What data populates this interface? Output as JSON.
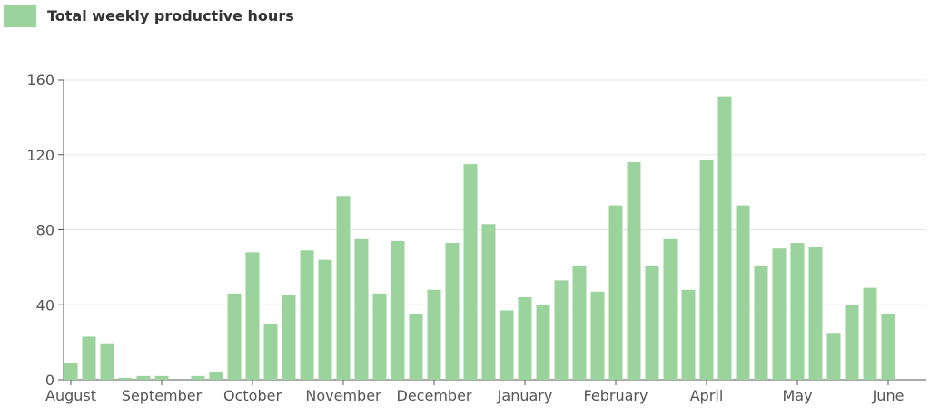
{
  "chart_data": {
    "type": "bar",
    "series": [
      {
        "name": "Total weekly productive hours",
        "color": "#9ad39b",
        "values": [
          9,
          23,
          19,
          1,
          2,
          2,
          0,
          2,
          4,
          46,
          68,
          30,
          45,
          69,
          64,
          98,
          75,
          46,
          74,
          35,
          48,
          73,
          115,
          83,
          37,
          44,
          40,
          53,
          61,
          47,
          93,
          116,
          61,
          75,
          48,
          117,
          151,
          93,
          61,
          70,
          73,
          71,
          25,
          40,
          49,
          35
        ]
      }
    ],
    "categories": [
      "August",
      null,
      null,
      null,
      null,
      "September",
      null,
      null,
      null,
      null,
      "October",
      null,
      null,
      null,
      null,
      "November",
      null,
      null,
      null,
      null,
      "December",
      null,
      null,
      null,
      null,
      "January",
      null,
      null,
      null,
      null,
      "February",
      null,
      null,
      null,
      null,
      "April",
      null,
      null,
      null,
      null,
      "May",
      null,
      null,
      null,
      null,
      "June"
    ],
    "ylim": [
      0,
      160
    ],
    "yticks": [
      0,
      40,
      80,
      120,
      160
    ],
    "grid": true,
    "legend": "top-left"
  }
}
